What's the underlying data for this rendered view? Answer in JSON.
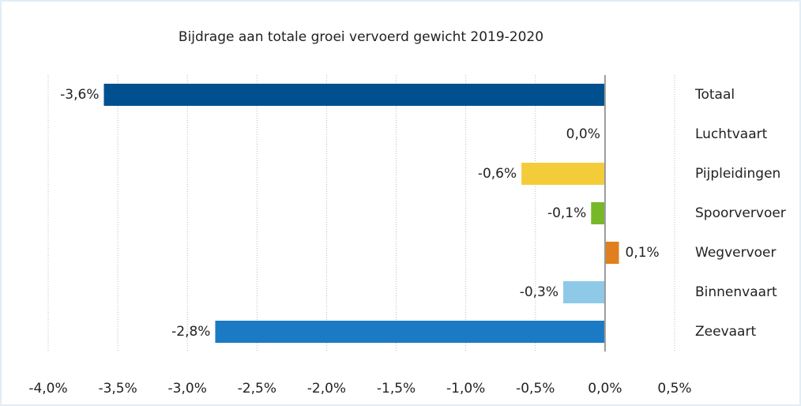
{
  "chart_data": {
    "type": "bar",
    "orientation": "horizontal",
    "title": "Bijdrage aan totale groei vervoerd gewicht 2019-2020",
    "categories": [
      "Totaal",
      "Luchtvaart",
      "Pijpleidingen",
      "Spoorvervoer",
      "Wegvervoer",
      "Binnenvaart",
      "Zeevaart"
    ],
    "values": [
      -3.6,
      0.0,
      -0.6,
      -0.1,
      0.1,
      -0.3,
      -2.8
    ],
    "value_labels": [
      "-3,6%",
      "0,0%",
      "-0,6%",
      "-0,1%",
      "0,1%",
      "-0,3%",
      "-2,8%"
    ],
    "colors": [
      "#00508f",
      "#9c9c9c",
      "#f4cc3a",
      "#76b82a",
      "#e07f1f",
      "#8ecae8",
      "#1a7bc4"
    ],
    "xlim": [
      -4.0,
      0.5
    ],
    "xticks": [
      {
        "value": -4.0,
        "label": "-4,0%"
      },
      {
        "value": -3.5,
        "label": "-3,5%"
      },
      {
        "value": -3.0,
        "label": "-3,0%"
      },
      {
        "value": -2.5,
        "label": "-2,5%"
      },
      {
        "value": -2.0,
        "label": "-2,0%"
      },
      {
        "value": -1.5,
        "label": "-1,5%"
      },
      {
        "value": -1.0,
        "label": "-1,0%"
      },
      {
        "value": -0.5,
        "label": "-0,5%"
      },
      {
        "value": 0.0,
        "label": "0,0%"
      },
      {
        "value": 0.5,
        "label": "0,5%"
      }
    ],
    "grid": true
  }
}
